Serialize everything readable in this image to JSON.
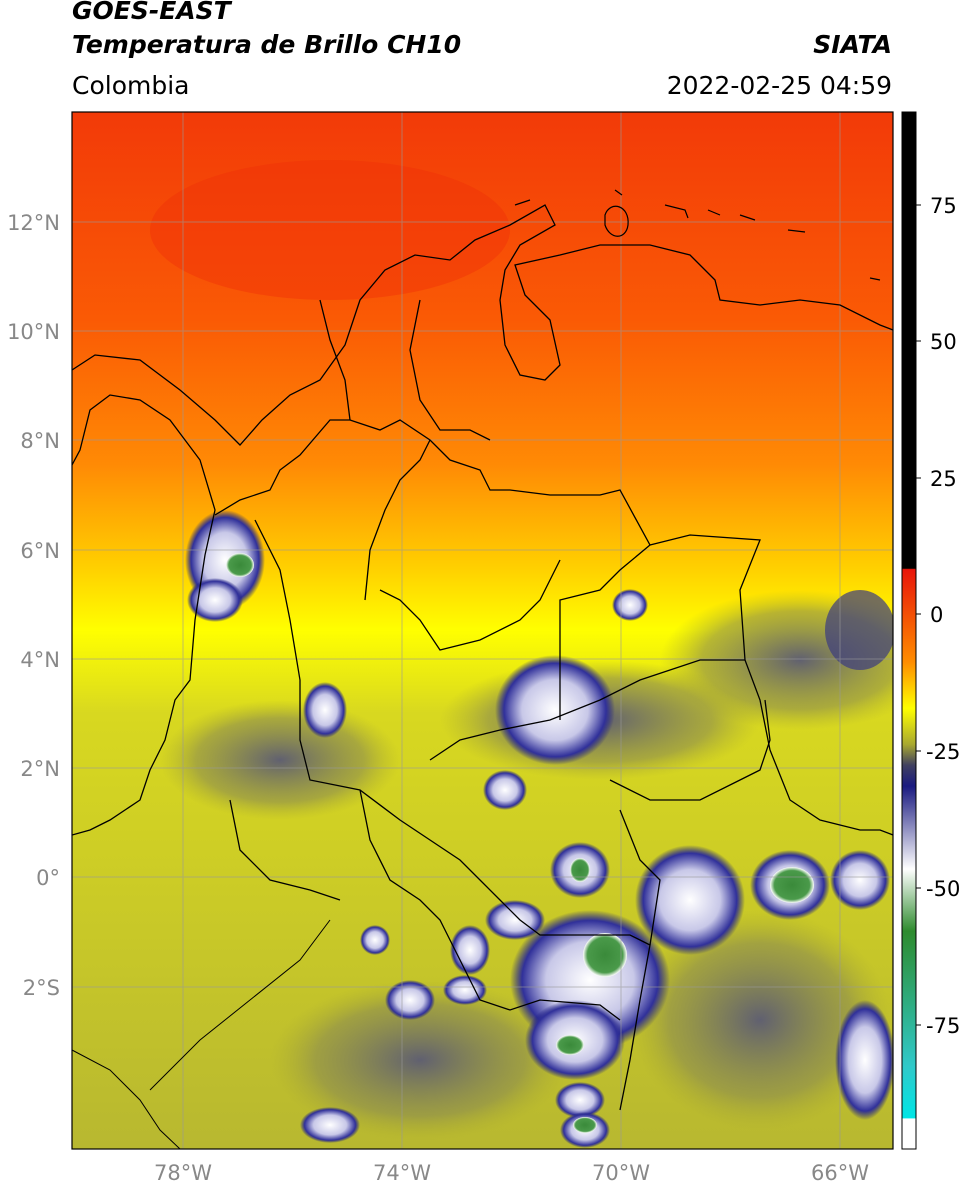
{
  "header": {
    "satellite": "GOES-EAST",
    "product": "Temperatura de Brillo CH10",
    "region": "Colombia",
    "agency": "SIATA",
    "datetime": "2022-02-25 04:59"
  },
  "map": {
    "lat_labels": [
      "12°N",
      "10°N",
      "8°N",
      "6°N",
      "4°N",
      "2°N",
      "0°",
      "2°S"
    ],
    "lon_labels": [
      "78°W",
      "74°W",
      "70°W",
      "66°W"
    ],
    "extent": {
      "lon_min": -80,
      "lon_max": -65,
      "lat_min": -5,
      "lat_max": 14
    }
  },
  "colorbar": {
    "ticks": [
      "75",
      "50",
      "25",
      "0",
      "-25",
      "-50",
      "-75"
    ],
    "colors": [
      "#000000",
      "#e8150a",
      "#ff8c00",
      "#ffff00",
      "#a8a830",
      "#1a1a80",
      "#ffffff",
      "#2e8b2e",
      "#30c9c9",
      "#00e5e5",
      "#ffffff"
    ]
  }
}
